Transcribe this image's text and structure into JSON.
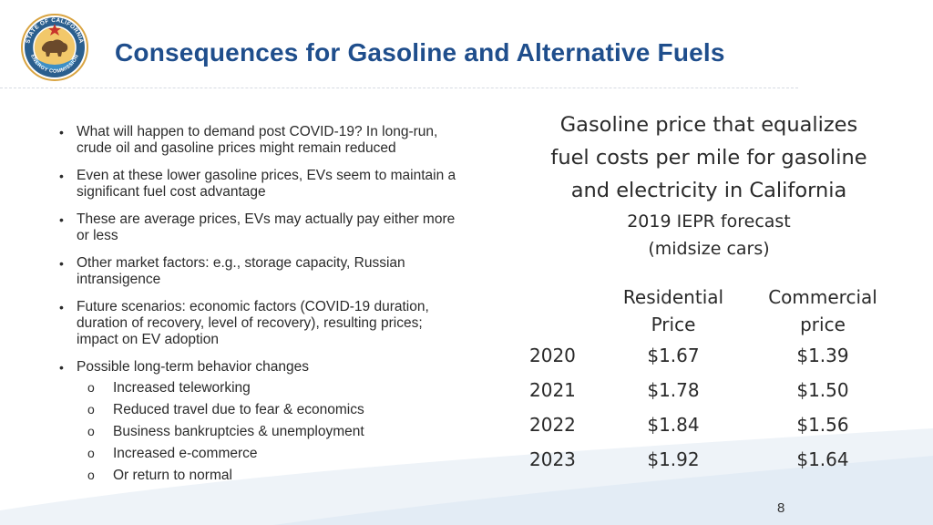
{
  "slide": {
    "title": "Consequences for Gasoline and Alternative Fuels",
    "page_number": "8",
    "accent_color": "#1f4e8c"
  },
  "logo": {
    "ring_top": "STATE OF CALIFORNIA",
    "ring_bottom": "ENERGY COMMISSION"
  },
  "bullets": [
    {
      "text": "What will happen to demand post COVID-19?  In long-run, crude oil and gasoline prices might remain reduced"
    },
    {
      "text": "Even at these lower gasoline prices, EVs seem to maintain a significant fuel cost advantage"
    },
    {
      "text": "These are average prices, EVs may actually pay either more or less"
    },
    {
      "text": "Other market factors: e.g., storage capacity, Russian intransigence"
    },
    {
      "text": "Future scenarios: economic factors (COVID-19 duration, duration of recovery, level of recovery), resulting prices; impact on EV adoption"
    },
    {
      "text": "Possible long-term behavior changes",
      "sub": [
        "Increased teleworking",
        "Reduced travel due to fear & economics",
        "Business bankruptcies & unemployment",
        "Increased e-commerce",
        "Or return to normal"
      ]
    }
  ],
  "table": {
    "heading_lines": [
      "Gasoline price that equalizes",
      "fuel costs per mile for gasoline",
      "and electricity in California"
    ],
    "subheading_lines": [
      "2019 IEPR forecast",
      "(midsize cars)"
    ],
    "col_residential": [
      "Residential",
      "Price"
    ],
    "col_commercial": [
      "Commercial",
      "price"
    ],
    "rows": [
      {
        "year": "2020",
        "residential": "$1.67",
        "commercial": "$1.39"
      },
      {
        "year": "2021",
        "residential": "$1.78",
        "commercial": "$1.50"
      },
      {
        "year": "2022",
        "residential": "$1.84",
        "commercial": "$1.56"
      },
      {
        "year": "2023",
        "residential": "$1.92",
        "commercial": "$1.64"
      }
    ]
  }
}
